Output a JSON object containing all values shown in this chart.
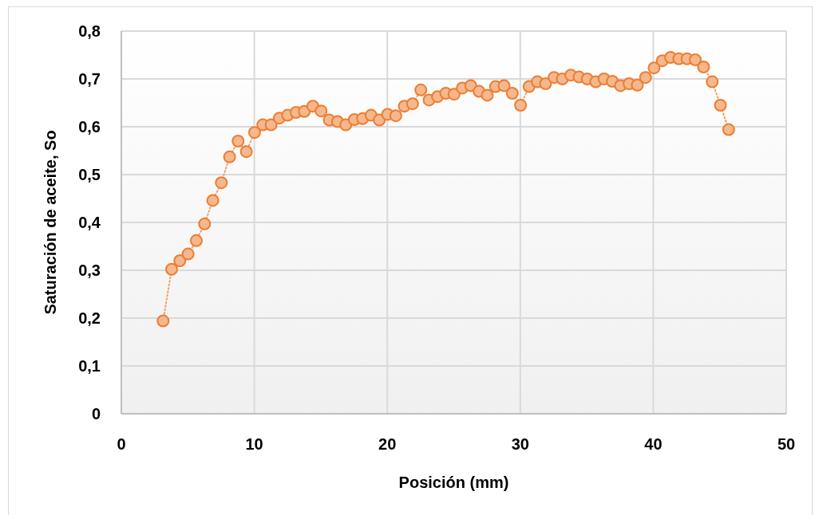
{
  "chart_data": {
    "type": "line",
    "xlabel": "Posición (mm)",
    "ylabel": "Saturación de aceite, So",
    "series": [
      {
        "color": "#ed7d31",
        "x": [
          3.14,
          3.78,
          4.4,
          5.02,
          5.64,
          6.26,
          6.88,
          7.52,
          8.14,
          8.78,
          9.4,
          10.02,
          10.64,
          11.26,
          11.88,
          12.5,
          13.14,
          13.76,
          14.4,
          15.02,
          15.64,
          16.26,
          16.88,
          17.52,
          18.14,
          18.78,
          19.4,
          20.02,
          20.64,
          21.28,
          21.9,
          22.52,
          23.14,
          23.78,
          24.4,
          25.02,
          25.64,
          26.28,
          26.9,
          27.52,
          28.14,
          28.78,
          29.4,
          30.02,
          30.66,
          31.28,
          31.9,
          32.54,
          33.16,
          33.8,
          34.42,
          35.04,
          35.68,
          36.3,
          36.92,
          37.54,
          38.18,
          38.8,
          39.42,
          40.06,
          40.68,
          41.3,
          41.92,
          42.54,
          43.16,
          43.78,
          44.43,
          45.05,
          45.67
        ],
        "values": [
          0.194,
          0.302,
          0.32,
          0.334,
          0.362,
          0.397,
          0.446,
          0.483,
          0.537,
          0.57,
          0.548,
          0.588,
          0.604,
          0.604,
          0.618,
          0.624,
          0.63,
          0.632,
          0.643,
          0.633,
          0.614,
          0.611,
          0.604,
          0.615,
          0.617,
          0.624,
          0.614,
          0.626,
          0.623,
          0.643,
          0.648,
          0.677,
          0.656,
          0.663,
          0.67,
          0.668,
          0.681,
          0.686,
          0.674,
          0.666,
          0.684,
          0.686,
          0.67,
          0.645,
          0.684,
          0.694,
          0.69,
          0.703,
          0.7,
          0.708,
          0.704,
          0.7,
          0.694,
          0.7,
          0.695,
          0.686,
          0.69,
          0.687,
          0.703,
          0.723,
          0.738,
          0.745,
          0.742,
          0.742,
          0.74,
          0.725,
          0.694,
          0.645,
          0.594
        ]
      }
    ],
    "xlim": [
      0,
      50
    ],
    "xticks": [
      0,
      10,
      20,
      30,
      40,
      50
    ],
    "ylim": [
      0,
      0.8
    ],
    "yticks": [
      0,
      {
        "value": 0.1,
        "label": "0,1"
      },
      {
        "value": 0.2,
        "label": "0,2"
      },
      {
        "value": 0.3,
        "label": "0,3"
      },
      {
        "value": 0.4,
        "label": "0,4"
      },
      {
        "value": 0.5,
        "label": "0,5"
      },
      {
        "value": 0.6,
        "label": "0,6"
      },
      {
        "value": 0.7,
        "label": "0,7"
      },
      {
        "value": 0.8,
        "label": "0,8"
      }
    ],
    "grid": true,
    "marker": "circle",
    "line_style": "dotted"
  }
}
